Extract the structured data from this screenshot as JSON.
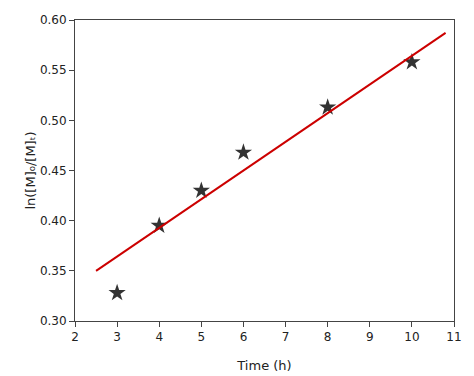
{
  "chart_data": {
    "type": "scatter",
    "xlabel": "Time (h)",
    "ylabel": "ln([M]₀/[M]ₜ)",
    "series": [
      {
        "type": "scatter",
        "x": [
          3,
          4,
          5,
          6,
          8,
          10
        ],
        "values": [
          0.328,
          0.395,
          0.43,
          0.468,
          0.513,
          0.558
        ],
        "color": "#333333",
        "marker": "star"
      },
      {
        "type": "line",
        "x": [
          2.5,
          10.8
        ],
        "values": [
          0.350025,
          0.587156
        ],
        "color": "#cc0000",
        "line_style": "solid"
      }
    ],
    "xlim": [
      2,
      11
    ],
    "ylim": [
      0.3,
      0.6
    ],
    "xticks": [
      2,
      3,
      4,
      5,
      6,
      7,
      8,
      9,
      10,
      11
    ],
    "yticks": [
      {
        "value": 0.3,
        "label": "0.30"
      },
      0.35,
      {
        "value": 0.4,
        "label": "0.40"
      },
      0.45,
      {
        "value": 0.5,
        "label": "0.50"
      },
      0.55,
      {
        "value": 0.6,
        "label": "0.60"
      }
    ],
    "grid": false
  }
}
